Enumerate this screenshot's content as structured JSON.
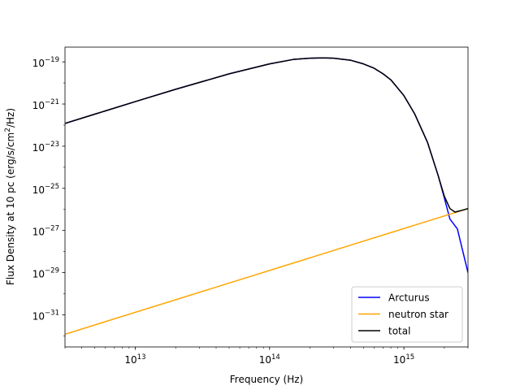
{
  "chart_data": {
    "type": "line",
    "title": "",
    "xlabel": "Frequency (Hz)",
    "ylabel_prefix": "Flux Density at 10 pc (erg/s/cm",
    "ylabel_sup": "2",
    "ylabel_suffix": "/Hz)",
    "x_scale": "log",
    "y_scale": "log",
    "xlim": [
      3000000000000.0,
      3000000000000000.0
    ],
    "ylim": [
      3e-33,
      5e-19
    ],
    "grid": false,
    "legend_position": "lower-right",
    "x_major_ticks": [
      {
        "value": 10000000000000.0,
        "base": "10",
        "exp": "13"
      },
      {
        "value": 100000000000000.0,
        "base": "10",
        "exp": "14"
      },
      {
        "value": 1000000000000000.0,
        "base": "10",
        "exp": "15"
      }
    ],
    "y_major_ticks": [
      {
        "value": 1e-19,
        "base": "10",
        "exp": "−19"
      },
      {
        "value": 1e-21,
        "base": "10",
        "exp": "−21"
      },
      {
        "value": 1e-23,
        "base": "10",
        "exp": "−23"
      },
      {
        "value": 1e-25,
        "base": "10",
        "exp": "−25"
      },
      {
        "value": 1e-27,
        "base": "10",
        "exp": "−27"
      },
      {
        "value": 1e-29,
        "base": "10",
        "exp": "−29"
      },
      {
        "value": 1e-31,
        "base": "10",
        "exp": "−31"
      }
    ],
    "series": [
      {
        "name": "Arcturus",
        "color": "#0000ff",
        "x": [
          3000000000000.0,
          5000000000000.0,
          10000000000000.0,
          20000000000000.0,
          50000000000000.0,
          100000000000000.0,
          150000000000000.0,
          200000000000000.0,
          250000000000000.0,
          300000000000000.0,
          400000000000000.0,
          500000000000000.0,
          600000000000000.0,
          700000000000000.0,
          800000000000000.0,
          1000000000000000.0,
          1200000000000000.0,
          1500000000000000.0,
          1800000000000000.0,
          2000000000000000.0,
          2200000000000000.0,
          2500000000000000.0,
          3000000000000000.0
        ],
        "y": [
          1.2e-22,
          3.3e-22,
          1.3e-21,
          5e-21,
          2.7e-20,
          8e-20,
          1.3e-19,
          1.5e-19,
          1.55e-19,
          1.5e-19,
          1.2e-19,
          8e-20,
          5e-20,
          2.7e-20,
          1.4e-20,
          2.5e-21,
          3.5e-22,
          1.5e-23,
          4e-25,
          3.5e-26,
          3.5e-27,
          1.2e-27,
          1e-29
        ]
      },
      {
        "name": "neutron star",
        "color": "#ffa500",
        "x": [
          3000000000000.0,
          3000000000000000.0
        ],
        "y": [
          1.2e-32,
          1.1e-26
        ]
      },
      {
        "name": "total",
        "color": "#000000",
        "x": [
          3000000000000.0,
          5000000000000.0,
          10000000000000.0,
          20000000000000.0,
          50000000000000.0,
          100000000000000.0,
          150000000000000.0,
          200000000000000.0,
          250000000000000.0,
          300000000000000.0,
          400000000000000.0,
          500000000000000.0,
          600000000000000.0,
          700000000000000.0,
          800000000000000.0,
          1000000000000000.0,
          1200000000000000.0,
          1500000000000000.0,
          1800000000000000.0,
          2000000000000000.0,
          2200000000000000.0,
          2400000000000000.0,
          2500000000000000.0,
          2700000000000000.0,
          3000000000000000.0
        ],
        "y": [
          1.2e-22,
          3.3e-22,
          1.3e-21,
          5e-21,
          2.7e-20,
          8e-20,
          1.3e-19,
          1.5e-19,
          1.55e-19,
          1.5e-19,
          1.2e-19,
          8e-20,
          5e-20,
          2.7e-20,
          1.4e-20,
          2.5e-21,
          3.5e-22,
          1.5e-23,
          4e-25,
          4.2e-26,
          1.1e-26,
          7.5e-27,
          8e-27,
          9e-27,
          1.1e-26
        ]
      }
    ]
  }
}
